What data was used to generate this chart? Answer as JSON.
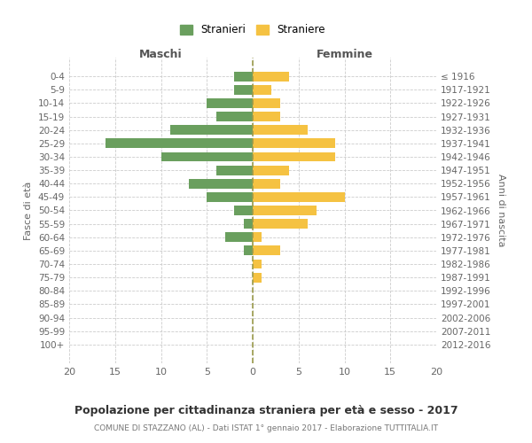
{
  "age_groups": [
    "0-4",
    "5-9",
    "10-14",
    "15-19",
    "20-24",
    "25-29",
    "30-34",
    "35-39",
    "40-44",
    "45-49",
    "50-54",
    "55-59",
    "60-64",
    "65-69",
    "70-74",
    "75-79",
    "80-84",
    "85-89",
    "90-94",
    "95-99",
    "100+"
  ],
  "birth_years": [
    "2012-2016",
    "2007-2011",
    "2002-2006",
    "1997-2001",
    "1992-1996",
    "1987-1991",
    "1982-1986",
    "1977-1981",
    "1972-1976",
    "1967-1971",
    "1962-1966",
    "1957-1961",
    "1952-1956",
    "1947-1951",
    "1942-1946",
    "1937-1941",
    "1932-1936",
    "1927-1931",
    "1922-1926",
    "1917-1921",
    "≤ 1916"
  ],
  "maschi": [
    2,
    2,
    5,
    4,
    9,
    16,
    10,
    4,
    7,
    5,
    2,
    1,
    3,
    1,
    0,
    0,
    0,
    0,
    0,
    0,
    0
  ],
  "femmine": [
    4,
    2,
    3,
    3,
    6,
    9,
    9,
    4,
    3,
    10,
    7,
    6,
    1,
    3,
    1,
    1,
    0,
    0,
    0,
    0,
    0
  ],
  "color_maschi": "#6a9f5e",
  "color_femmine": "#f5c242",
  "title": "Popolazione per cittadinanza straniera per età e sesso - 2017",
  "subtitle": "COMUNE DI STAZZANO (AL) - Dati ISTAT 1° gennaio 2017 - Elaborazione TUTTITALIA.IT",
  "xlabel_left": "Maschi",
  "xlabel_right": "Femmine",
  "ylabel_left": "Fasce di età",
  "ylabel_right": "Anni di nascita",
  "legend_maschi": "Stranieri",
  "legend_femmine": "Straniere",
  "xlim": 20,
  "background_color": "#ffffff",
  "grid_color": "#cccccc",
  "dashed_line_color": "#9a9a4a"
}
